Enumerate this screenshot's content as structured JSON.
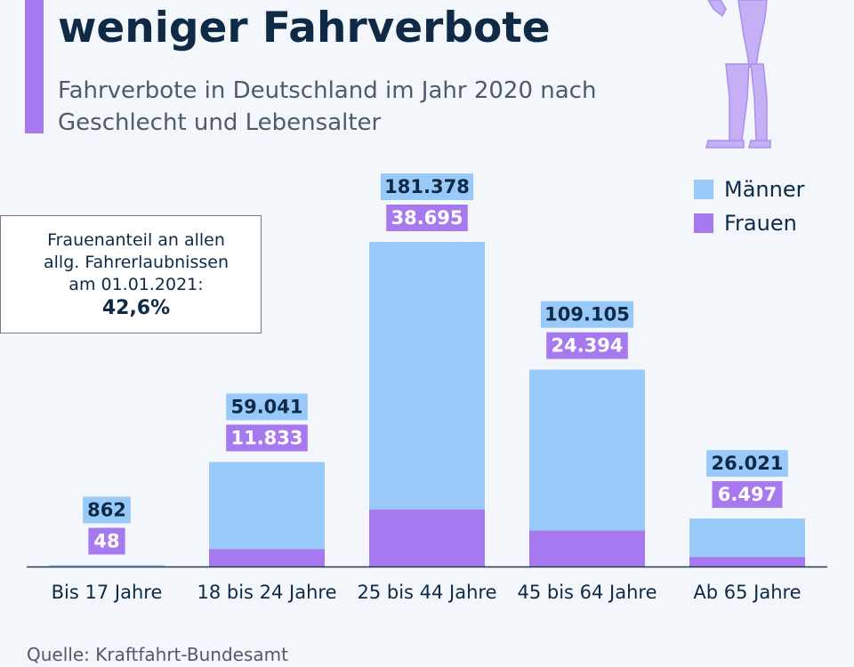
{
  "header": {
    "title": "weniger Fahrverbote",
    "subtitle": "Fahrverbote in Deutschland im Jahr 2020 nach Geschlecht und Lebensalter"
  },
  "infobox": {
    "text": "Frauenanteil an allen\nallg. Fahrerlaubnissen\nam 01.01.2021:",
    "value": "42,6%"
  },
  "source": "Quelle: Kraftfahrt-Bundesamt",
  "colors": {
    "maenner": "#99c9f8",
    "frauen": "#a779ef",
    "title": "#0e2a47",
    "background": "#f3f6fa"
  },
  "chart_data": {
    "type": "bar",
    "stacked": true,
    "categories": [
      "Bis 17 Jahre",
      "18 bis 24 Jahre",
      "25 bis 44 Jahre",
      "45 bis 64 Jahre",
      "Ab 65 Jahre"
    ],
    "series": [
      {
        "name": "Männer",
        "values": [
          862,
          59041,
          181378,
          109105,
          26021
        ],
        "labels": [
          "862",
          "59.041",
          "181.378",
          "109.105",
          "26.021"
        ]
      },
      {
        "name": "Frauen",
        "values": [
          48,
          11833,
          38695,
          24394,
          6497
        ],
        "labels": [
          "48",
          "11.833",
          "38.695",
          "24.394",
          "6.497"
        ]
      }
    ],
    "legend_position": "top-right",
    "grid": false
  }
}
